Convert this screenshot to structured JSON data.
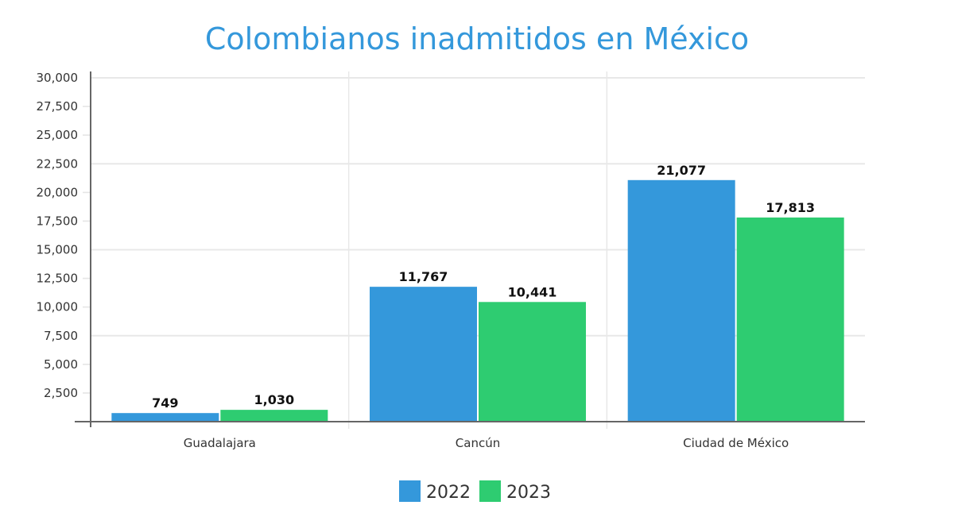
{
  "chart_data": {
    "type": "bar",
    "title": "Colombianos inadmitidos en México",
    "xlabel": "",
    "ylabel": "",
    "categories": [
      "Guadalajara",
      "Cancún",
      "Ciudad de México"
    ],
    "series": [
      {
        "name": "2022",
        "color": "#3498db",
        "values": [
          749,
          11767,
          21077
        ],
        "labels": [
          "749",
          "11,767",
          "21,077"
        ]
      },
      {
        "name": "2023",
        "color": "#2ecc71",
        "values": [
          1030,
          10441,
          17813
        ],
        "labels": [
          "1,030",
          "10,441",
          "17,813"
        ]
      }
    ],
    "ylim": [
      0,
      30000
    ],
    "yticks": [
      2500,
      5000,
      7500,
      10000,
      12500,
      15000,
      17500,
      20000,
      22500,
      25000,
      27500,
      30000
    ],
    "ytick_labels": [
      "2,500",
      "5,000",
      "7,500",
      "10,000",
      "12,500",
      "15,000",
      "17,500",
      "20,000",
      "22,500",
      "25,000",
      "27,500",
      "30,000"
    ],
    "grid": true,
    "legend": "bottom-center"
  }
}
